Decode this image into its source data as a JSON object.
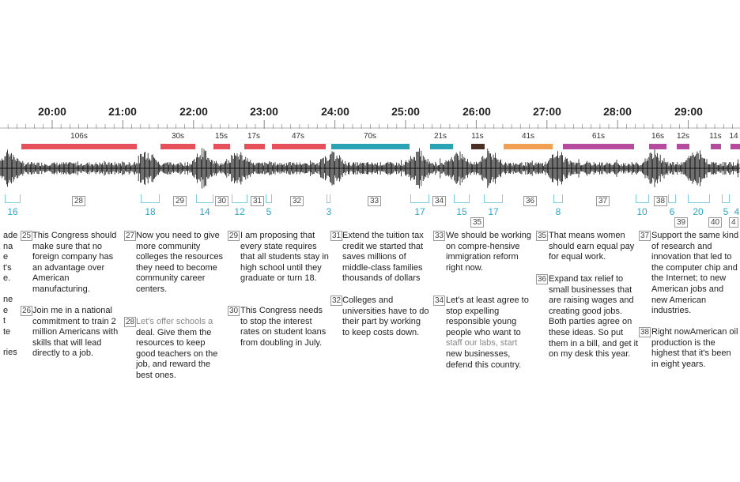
{
  "timeline": {
    "time_labels": [
      "20:00",
      "21:00",
      "22:00",
      "23:00",
      "24:00",
      "25:00",
      "26:00",
      "27:00",
      "28:00",
      "29:00"
    ],
    "durations": [
      "106s",
      "30s",
      "15s",
      "17s",
      "47s",
      "70s",
      "21s",
      "11s",
      "41s",
      "61s",
      "16s",
      "12s",
      "11s",
      "14"
    ],
    "colors": {
      "red": "#e5505a",
      "teal": "#2aa3b4",
      "brown": "#4a3024",
      "orange": "#f0a050",
      "magenta": "#b54a9e",
      "cyan": "#2aa8c8"
    }
  },
  "markers": {
    "upper_numbers": [
      "28",
      "29",
      "30",
      "31",
      "32",
      "33",
      "34",
      "35",
      "36",
      "37",
      "38",
      "39",
      "40",
      "4"
    ],
    "cyan_numbers": [
      "16",
      "18",
      "14",
      "12",
      "5",
      "3",
      "17",
      "15",
      "17",
      "8",
      "10",
      "6",
      "20",
      "5",
      "4"
    ]
  },
  "paragraphs": {
    "col0": [
      "ade",
      "na",
      "e",
      "t's",
      "e.",
      "ne",
      "e",
      "t",
      "te",
      "ries"
    ],
    "p25": {
      "num": "25",
      "text": "This Congress should make sure that no foreign company has an advantage over American manufacturing."
    },
    "p26": {
      "num": "26",
      "text": "Join me in a national commitment to train 2 million Americans with skills that will lead directly to a job."
    },
    "p27": {
      "num": "27",
      "text": "Now you need to give more community colleges the resources they need to become community career centers."
    },
    "p28": {
      "num": "28",
      "gray": "Let's offer schools a",
      "text": "deal. Give them the resources to keep good teachers on the job, and reward the best ones."
    },
    "p29": {
      "num": "29",
      "text": "I am proposing that every state requires that all students stay in high school until they graduate or turn 18."
    },
    "p30": {
      "num": "30",
      "text": "This Congress needs to stop the interest rates on student loans from doubling in July."
    },
    "p31": {
      "num": "31",
      "text": "Extend the tuition tax credit we started that saves millions of middle-class families thousands of dollars"
    },
    "p32": {
      "num": "32",
      "text": "Colleges and universities have to do their part by working to keep costs down."
    },
    "p33": {
      "num": "33",
      "text": "We should be working on compre-hensive immigration reform right now."
    },
    "p34": {
      "num": "34",
      "text": "Let's at least agree to stop expelling responsible young people who want to",
      "gray": "staff our labs, start",
      "text2": "new businesses, defend this country."
    },
    "p35": {
      "num": "35",
      "text": "That means women should earn equal pay for equal work."
    },
    "p36": {
      "num": "36",
      "text": "Expand tax relief to small businesses that are raising wages and creating good jobs.  Both parties agree on these ideas. So put them in a bill, and get it on my desk this year."
    },
    "p37": {
      "num": "37",
      "text": "Support the same kind of research and innovation that led to the computer chip and the Internet; to new American jobs and new American industries."
    },
    "p38": {
      "num": "38",
      "text": "Right nowAmerican oil production is the highest that it's been in eight years."
    }
  }
}
